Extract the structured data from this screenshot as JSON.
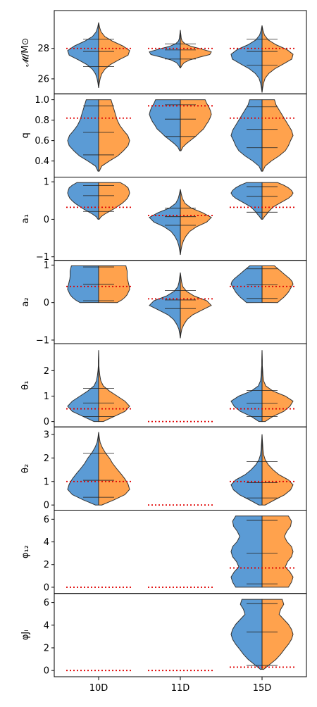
{
  "chart_data": {
    "type": "violin",
    "split": true,
    "colors": {
      "left": "#5b9bd5",
      "right": "#ffa24d",
      "truth": "#e00000",
      "outline": "#333333"
    },
    "categories": [
      "10D",
      "11D",
      "15D"
    ],
    "panels": [
      {
        "ylabel": "𝓜/M⊙",
        "ylim": [
          25.2,
          30.3
        ],
        "yticks": [
          "26",
          "28"
        ],
        "truth": [
          28.0,
          28.0,
          28.0
        ],
        "violins": [
          {
            "range": [
              25.4,
              29.7
            ],
            "profile": [
              0,
              0.02,
              0.05,
              0.1,
              0.2,
              0.38,
              0.65,
              0.95,
              1.0,
              0.78,
              0.45,
              0.2,
              0.08,
              0.03,
              0
            ],
            "lines": [
              26.8,
              27.8,
              28.6
            ]
          },
          {
            "range": [
              26.7,
              29.2
            ],
            "profile": [
              0,
              0.05,
              0.12,
              0.3,
              0.6,
              0.95,
              1.0,
              0.7,
              0.35,
              0.15,
              0.06,
              0.03,
              0.02,
              0.01,
              0
            ],
            "lines": [
              27.3,
              27.9,
              28.3
            ]
          },
          {
            "range": [
              25.1,
              29.5
            ],
            "profile": [
              0,
              0.02,
              0.05,
              0.1,
              0.22,
              0.42,
              0.7,
              0.96,
              1.0,
              0.8,
              0.45,
              0.2,
              0.08,
              0.03,
              0
            ],
            "lines": [
              26.9,
              27.8,
              28.6
            ]
          }
        ]
      },
      {
        "ylabel": "q",
        "ylim": [
          0.27,
          1.03
        ],
        "yticks": [
          "0.4",
          "0.6",
          "0.8",
          "1.0"
        ],
        "truth": [
          0.82,
          0.94,
          0.82
        ],
        "violins": [
          {
            "range": [
              0.3,
              1.0
            ],
            "profile": [
              0.02,
              0.1,
              0.35,
              0.62,
              0.8,
              0.95,
              1.0,
              0.94,
              0.8,
              0.68,
              0.6,
              0.55,
              0.5,
              0.45,
              0.4
            ],
            "lines": [
              0.46,
              0.68,
              0.94
            ]
          },
          {
            "range": [
              0.5,
              1.0
            ],
            "profile": [
              0.02,
              0.08,
              0.2,
              0.35,
              0.5,
              0.62,
              0.75,
              0.82,
              0.9,
              0.96,
              1.0,
              0.97,
              0.92,
              0.85,
              0.8
            ],
            "lines": [
              0.64,
              0.81,
              0.95
            ]
          },
          {
            "range": [
              0.3,
              1.0
            ],
            "profile": [
              0.02,
              0.1,
              0.3,
              0.55,
              0.75,
              0.85,
              0.92,
              1.0,
              0.95,
              0.85,
              0.75,
              0.65,
              0.55,
              0.45,
              0.4
            ],
            "lines": [
              0.53,
              0.71,
              0.93
            ]
          }
        ]
      },
      {
        "ylabel": "a₁",
        "ylim": [
          -1.02,
          1.05
        ],
        "yticks": [
          "-1",
          "0",
          "1"
        ],
        "truth": [
          0.32,
          0.1,
          0.32
        ],
        "violins": [
          {
            "range": [
              0.0,
              0.98
            ],
            "profile": [
              0.02,
              0.08,
              0.2,
              0.35,
              0.5,
              0.62,
              0.75,
              0.85,
              0.93,
              0.97,
              1.0,
              0.98,
              0.95,
              0.85,
              0.7
            ],
            "lines": [
              0.21,
              0.63,
              0.9
            ]
          },
          {
            "range": [
              -0.95,
              0.8
            ],
            "profile": [
              0,
              0.02,
              0.05,
              0.1,
              0.18,
              0.3,
              0.52,
              0.85,
              1.0,
              0.72,
              0.35,
              0.15,
              0.07,
              0.03,
              0
            ],
            "lines": [
              -0.16,
              0.07,
              0.3
            ]
          },
          {
            "range": [
              0.0,
              0.98
            ],
            "profile": [
              0.02,
              0.08,
              0.15,
              0.22,
              0.3,
              0.4,
              0.55,
              0.7,
              0.85,
              0.95,
              1.0,
              0.95,
              0.85,
              0.7,
              0.5
            ],
            "lines": [
              0.19,
              0.61,
              0.87
            ]
          }
        ]
      },
      {
        "ylabel": "a₂",
        "ylim": [
          -1.02,
          1.05
        ],
        "yticks": [
          "-1",
          "0",
          "1"
        ],
        "truth": [
          0.43,
          0.1,
          0.43
        ],
        "violins": [
          {
            "range": [
              0.0,
              0.98
            ],
            "profile": [
              0.6,
              0.75,
              0.85,
              0.92,
              0.96,
              1.0,
              0.99,
              0.97,
              0.95,
              0.93,
              0.92,
              0.92,
              0.92,
              0.9,
              0.88
            ],
            "lines": [
              0.05,
              0.49,
              0.95
            ]
          },
          {
            "range": [
              -0.95,
              0.8
            ],
            "profile": [
              0,
              0.02,
              0.05,
              0.12,
              0.22,
              0.4,
              0.7,
              1.0,
              0.85,
              0.45,
              0.2,
              0.08,
              0.04,
              0.02,
              0
            ],
            "lines": [
              -0.16,
              0.07,
              0.32
            ]
          },
          {
            "range": [
              0.0,
              0.98
            ],
            "profile": [
              0.5,
              0.6,
              0.7,
              0.78,
              0.85,
              0.9,
              0.95,
              1.0,
              0.97,
              0.9,
              0.8,
              0.7,
              0.6,
              0.5,
              0.4
            ],
            "lines": [
              0.11,
              0.47,
              0.9
            ]
          }
        ]
      },
      {
        "ylabel": "θ₁",
        "ylim": [
          -0.1,
          2.95
        ],
        "yticks": [
          "0",
          "1",
          "2"
        ],
        "truth": [
          0.5,
          0.0,
          0.5
        ],
        "violins": [
          {
            "range": [
              0.0,
              2.8
            ],
            "profile": [
              0.15,
              0.5,
              0.85,
              1.0,
              0.85,
              0.6,
              0.35,
              0.15,
              0.07,
              0.04,
              0.02,
              0.01,
              0.01,
              0.005,
              0
            ],
            "lines": [
              0.2,
              0.73,
              1.3
            ]
          },
          {
            "range": [
              0.0,
              2.8
            ],
            "profile": [
              0.1,
              0.35,
              0.7,
              0.9,
              1.0,
              0.75,
              0.35,
              0.12,
              0.05,
              0.03,
              0.02,
              0.01,
              0.01,
              0.005,
              0
            ],
            "lines": [
              0.2,
              0.72,
              1.22
            ]
          }
        ],
        "violin_slots": [
          0,
          2
        ]
      },
      {
        "ylabel": "θ₂",
        "ylim": [
          -0.1,
          3.2
        ],
        "yticks": [
          "0",
          "1",
          "2",
          "3"
        ],
        "truth": [
          1.0,
          0.0,
          1.0
        ],
        "violins": [
          {
            "range": [
              0.0,
              3.1
            ],
            "profile": [
              0.1,
              0.5,
              0.85,
              1.0,
              0.95,
              0.85,
              0.72,
              0.58,
              0.45,
              0.35,
              0.22,
              0.12,
              0.05,
              0.02,
              0
            ],
            "lines": [
              0.33,
              1.05,
              2.2
            ]
          },
          {
            "range": [
              0.0,
              3.0
            ],
            "profile": [
              0.1,
              0.4,
              0.72,
              0.92,
              1.0,
              0.85,
              0.55,
              0.35,
              0.2,
              0.1,
              0.05,
              0.03,
              0.02,
              0.01,
              0
            ],
            "lines": [
              0.3,
              0.95,
              1.85
            ]
          }
        ],
        "violin_slots": [
          0,
          2
        ]
      },
      {
        "ylabel": "φ₁₂",
        "ylim": [
          -0.3,
          6.55
        ],
        "yticks": [
          "0",
          "2",
          "4",
          "6"
        ],
        "truth": [
          0.0,
          0.0,
          1.7
        ],
        "violins": [
          {
            "range": [
              0.0,
              6.28
            ],
            "profile": [
              0.85,
              0.95,
              1.0,
              0.9,
              0.75,
              0.82,
              0.95,
              1.0,
              0.95,
              0.8,
              0.72,
              0.8,
              0.92,
              0.95,
              0.85
            ],
            "lines": [
              0.3,
              3.0,
              5.9
            ]
          }
        ],
        "violin_slots": [
          2
        ]
      },
      {
        "ylabel": "φJₗ",
        "ylim": [
          -0.3,
          6.55
        ],
        "yticks": [
          "0",
          "2",
          "4",
          "6"
        ],
        "truth": [
          0.0,
          0.0,
          0.3
        ],
        "violins": [
          {
            "range": [
              0.1,
              6.28
            ],
            "profile": [
              0.05,
              0.25,
              0.45,
              0.6,
              0.72,
              0.85,
              0.95,
              1.0,
              0.95,
              0.85,
              0.7,
              0.55,
              0.6,
              0.7,
              0.65
            ],
            "lines": [
              0.45,
              3.4,
              5.9
            ]
          }
        ],
        "violin_slots": [
          2
        ]
      }
    ]
  }
}
